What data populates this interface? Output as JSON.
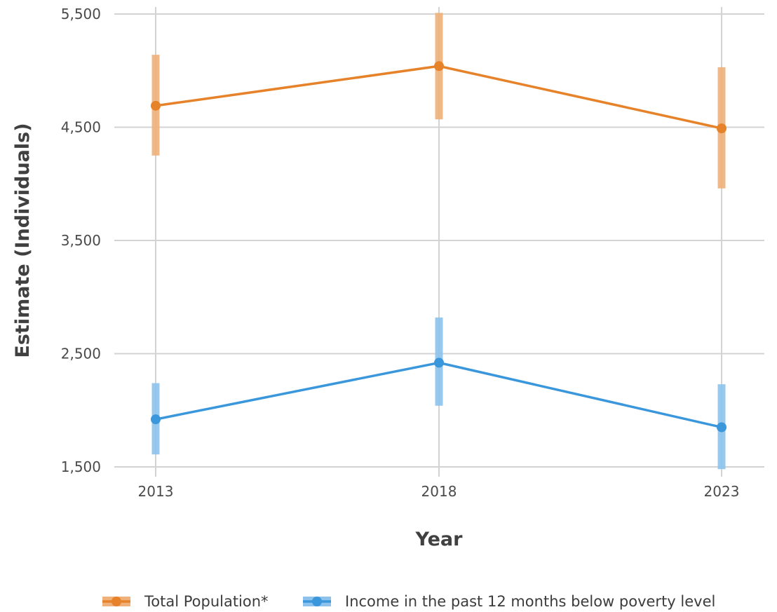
{
  "chart_data": {
    "type": "line",
    "x": [
      "2013",
      "2018",
      "2023"
    ],
    "xlabel": "Year",
    "ylabel": "Estimate (Individuals)",
    "ylim": [
      1500,
      5500
    ],
    "yticks": [
      1500,
      2500,
      3500,
      4500,
      5500
    ],
    "ytick_labels": [
      "1,500",
      "2,500",
      "3,500",
      "4,500",
      "5,500"
    ],
    "grid": true,
    "legend_position": "bottom",
    "series": [
      {
        "name": "Total Population*",
        "color": "#E6832A",
        "band_color": "#F0B07A",
        "values": [
          4690,
          5040,
          4490
        ],
        "lower": [
          4250,
          4570,
          3960
        ],
        "upper": [
          5140,
          5510,
          5030
        ]
      },
      {
        "name": "Income in the past 12 months below poverty level",
        "color": "#3A97DC",
        "band_color": "#8CC2EB",
        "values": [
          1920,
          2420,
          1850
        ],
        "lower": [
          1610,
          2040,
          1480
        ],
        "upper": [
          2240,
          2820,
          2230
        ]
      }
    ]
  }
}
